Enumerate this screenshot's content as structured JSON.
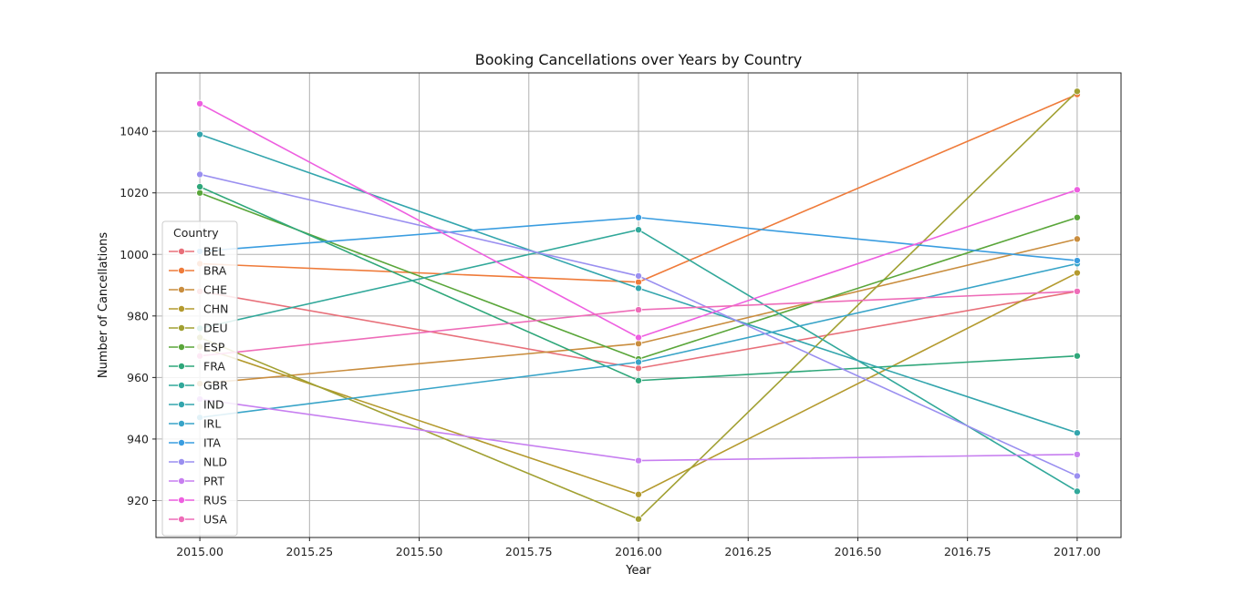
{
  "chart_data": {
    "type": "line",
    "title": "Booking Cancellations over Years by Country",
    "xlabel": "Year",
    "ylabel": "Number of Cancellations",
    "xlim": [
      2014.9,
      2017.1
    ],
    "ylim": [
      908,
      1059
    ],
    "xticks": [
      2015.0,
      2015.25,
      2015.5,
      2015.75,
      2016.0,
      2016.25,
      2016.5,
      2016.75,
      2017.0
    ],
    "xtick_labels": [
      "2015.00",
      "2015.25",
      "2015.50",
      "2015.75",
      "2016.00",
      "2016.25",
      "2016.50",
      "2016.75",
      "2017.00"
    ],
    "yticks": [
      920,
      940,
      960,
      980,
      1000,
      1020,
      1040
    ],
    "yticks_labels": [
      "920",
      "940",
      "960",
      "980",
      "1000",
      "1020",
      "1040"
    ],
    "grid": true,
    "legend_title": "Country",
    "legend_position": "left-lower",
    "x": [
      2015,
      2016,
      2017
    ],
    "series": [
      {
        "name": "BEL",
        "color": "#e8707a",
        "values": [
          988,
          963,
          988
        ]
      },
      {
        "name": "BRA",
        "color": "#ef7b3a",
        "values": [
          997,
          991,
          1052
        ]
      },
      {
        "name": "CHE",
        "color": "#c98d3e",
        "values": [
          958,
          971,
          1005
        ]
      },
      {
        "name": "CHN",
        "color": "#b49a2e",
        "values": [
          970,
          922,
          994
        ]
      },
      {
        "name": "DEU",
        "color": "#a1a032",
        "values": [
          973,
          914,
          1053
        ]
      },
      {
        "name": "ESP",
        "color": "#5aa63a",
        "values": [
          1020,
          966,
          1012
        ]
      },
      {
        "name": "FRA",
        "color": "#2fa77a",
        "values": [
          1022,
          959,
          967
        ]
      },
      {
        "name": "GBR",
        "color": "#31a89a",
        "values": [
          976,
          1008,
          923
        ]
      },
      {
        "name": "IND",
        "color": "#33a5ad",
        "values": [
          1039,
          989,
          942
        ]
      },
      {
        "name": "IRL",
        "color": "#38a4c8",
        "values": [
          947,
          965,
          997
        ]
      },
      {
        "name": "ITA",
        "color": "#3a9de0",
        "values": [
          1001,
          1012,
          998
        ]
      },
      {
        "name": "NLD",
        "color": "#9a8ff0",
        "values": [
          1026,
          993,
          928
        ]
      },
      {
        "name": "PRT",
        "color": "#c77ff0",
        "values": [
          953,
          933,
          935
        ]
      },
      {
        "name": "RUS",
        "color": "#ee5fe0",
        "values": [
          1049,
          973,
          1021
        ]
      },
      {
        "name": "USA",
        "color": "#ee6cb8",
        "values": [
          967,
          982,
          988
        ]
      }
    ]
  }
}
